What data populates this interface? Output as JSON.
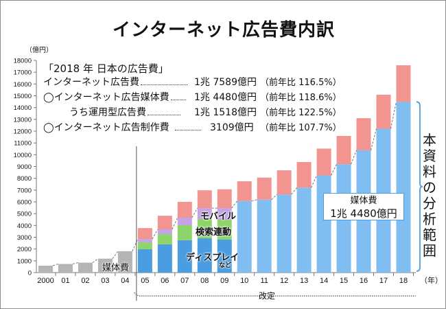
{
  "title": "インターネット広告費内訳",
  "summary": {
    "heading": "「2018 年 日本の広告費」",
    "rows": [
      {
        "label": "インターネット広告費",
        "value": "1兆 7589億円",
        "yoy": "（前年比 116.5%）"
      },
      {
        "label": "◯インターネット広告媒体費",
        "value": "1兆 4480億円",
        "yoy": "（前年比 118.6%）"
      },
      {
        "label": "うち運用型広告費",
        "value": "1兆 1518億円",
        "yoy": "（前年比 122.5%）"
      },
      {
        "label": "◯インターネット広告制作費",
        "value": "3109億円",
        "yoy": "（前年比 107.7%）"
      }
    ]
  },
  "annotations": {
    "media_label_old": "媒体費",
    "mobile": "モバイル",
    "search": "検索連動",
    "display": "ディスプレイ",
    "display_suffix": "など",
    "media_box_line1": "媒体費",
    "media_box_line2": "1兆 4480億円",
    "scope": "本資料の分析範囲",
    "revision": "改定"
  },
  "chart_data": {
    "type": "bar",
    "stacked": true,
    "ylabel": "（億円）",
    "xlabel": "（年）",
    "ylim": [
      0,
      18000
    ],
    "yticks": [
      0,
      1000,
      2000,
      3000,
      4000,
      5000,
      6000,
      7000,
      8000,
      9000,
      10000,
      11000,
      12000,
      13000,
      14000,
      15000,
      16000,
      17000,
      18000
    ],
    "categories": [
      "2000",
      "01",
      "02",
      "03",
      "04",
      "05",
      "06",
      "07",
      "08",
      "09",
      "10",
      "11",
      "12",
      "13",
      "14",
      "15",
      "16",
      "17",
      "18"
    ],
    "series": [
      {
        "key": "media_old",
        "color": "#b5b5b5",
        "values": [
          590,
          735,
          845,
          1183,
          1814,
          0,
          0,
          0,
          0,
          0,
          0,
          0,
          0,
          0,
          0,
          0,
          0,
          0,
          0
        ]
      },
      {
        "key": "display",
        "color": "#4a9de0",
        "values": [
          0,
          0,
          0,
          0,
          0,
          1980,
          2390,
          2740,
          2910,
          2800,
          0,
          0,
          0,
          0,
          0,
          0,
          0,
          0,
          0
        ]
      },
      {
        "key": "search",
        "color": "#8fd46a",
        "values": [
          0,
          0,
          0,
          0,
          0,
          580,
          870,
          1280,
          1630,
          1680,
          0,
          0,
          0,
          0,
          0,
          0,
          0,
          0,
          0
        ]
      },
      {
        "key": "mobile",
        "color": "#c4a3e6",
        "values": [
          0,
          0,
          0,
          0,
          0,
          290,
          410,
          640,
          930,
          990,
          0,
          0,
          0,
          0,
          0,
          0,
          0,
          0,
          0
        ]
      },
      {
        "key": "media",
        "color": "#80bdf0",
        "values": [
          0,
          0,
          0,
          0,
          0,
          0,
          0,
          0,
          0,
          0,
          6077,
          6189,
          6629,
          7203,
          8245,
          9194,
          10378,
          12206,
          14480
        ]
      },
      {
        "key": "production",
        "color": "#f29490",
        "values": [
          0,
          0,
          0,
          0,
          0,
          927,
          1156,
          1343,
          1513,
          1599,
          1670,
          1873,
          2051,
          2178,
          2274,
          2400,
          2722,
          2888,
          3109
        ]
      }
    ],
    "revision_start": "05",
    "grid": false
  }
}
